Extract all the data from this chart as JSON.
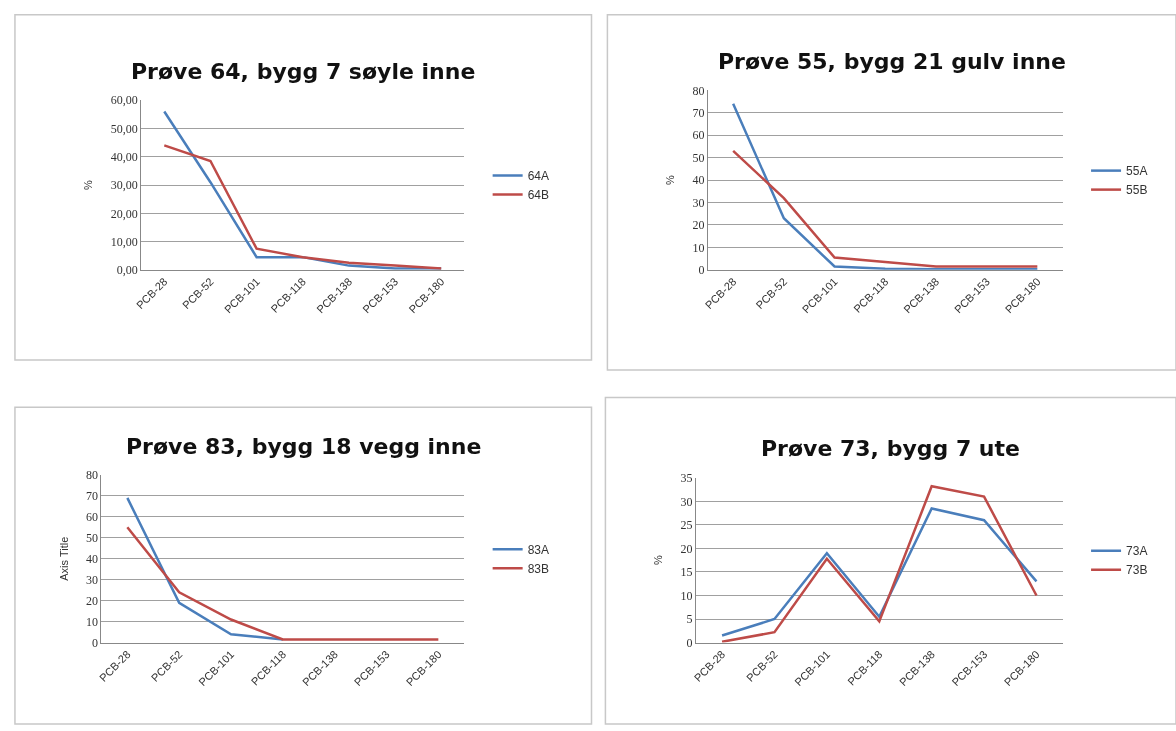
{
  "chart_data": [
    {
      "type": "line",
      "title": "Prøve 64, bygg 7 søyle inne",
      "ylabel": "%",
      "categories": [
        "PCB-28",
        "PCB-52",
        "PCB-101",
        "PCB-118",
        "PCB-138",
        "PCB-153",
        "PCB-180"
      ],
      "series": [
        {
          "name": "64A",
          "color": "#4a7ebb",
          "values": [
            56,
            31,
            4.5,
            4.5,
            1.5,
            0.5,
            0.5
          ]
        },
        {
          "name": "64B",
          "color": "#be4b48",
          "values": [
            44,
            38.5,
            7.5,
            4.5,
            2.5,
            1.5,
            0.5
          ]
        }
      ],
      "ylim": [
        0,
        60
      ],
      "yticks": [
        {
          "value": 0,
          "label": "0,00"
        },
        {
          "value": 10,
          "label": "10,00"
        },
        {
          "value": 20,
          "label": "20,00"
        },
        {
          "value": 30,
          "label": "30,00"
        },
        {
          "value": 40,
          "label": "40,00"
        },
        {
          "value": 50,
          "label": "50,00"
        },
        {
          "value": 60,
          "label": "60,00"
        }
      ],
      "grid": "y",
      "legend": "right",
      "marker": "none",
      "line_style": "solid"
    },
    {
      "type": "line",
      "title": "Prøve 55, bygg 21 gulv inne",
      "ylabel": "%",
      "categories": [
        "PCB-28",
        "PCB-52",
        "PCB-101",
        "PCB-118",
        "PCB-138",
        "PCB-153",
        "PCB-180"
      ],
      "series": [
        {
          "name": "55A",
          "color": "#4a7ebb",
          "values": [
            74,
            23,
            1.5,
            0.5,
            0.3,
            0.3,
            0.3
          ]
        },
        {
          "name": "55B",
          "color": "#be4b48",
          "values": [
            53,
            32,
            5.5,
            3.5,
            1.5,
            1.5,
            1.5
          ]
        }
      ],
      "ylim": [
        0,
        80
      ],
      "yticks": [
        0,
        10,
        20,
        30,
        40,
        50,
        60,
        70,
        80
      ],
      "grid": "y",
      "legend": "right",
      "marker": "none",
      "line_style": "solid"
    },
    {
      "type": "line",
      "title": "Prøve 83, bygg 18 vegg inne",
      "ylabel": "Axis Title",
      "categories": [
        "PCB-28",
        "PCB-52",
        "PCB-101",
        "PCB-118",
        "PCB-138",
        "PCB-153",
        "PCB-180"
      ],
      "series": [
        {
          "name": "83A",
          "color": "#4a7ebb",
          "values": [
            69,
            19,
            4,
            1.5,
            null,
            null,
            null
          ]
        },
        {
          "name": "83B",
          "color": "#be4b48",
          "values": [
            55,
            24,
            11,
            1.5,
            1.5,
            1.5,
            1.5
          ]
        }
      ],
      "ylim": [
        0,
        80
      ],
      "yticks": [
        0,
        10,
        20,
        30,
        40,
        50,
        60,
        70,
        80
      ],
      "grid": "y",
      "legend": "right",
      "marker": "none",
      "line_style": "solid"
    },
    {
      "type": "line",
      "title": "Prøve 73, bygg 7 ute",
      "ylabel": "%",
      "categories": [
        "PCB-28",
        "PCB-52",
        "PCB-101",
        "PCB-118",
        "PCB-138",
        "PCB-153",
        "PCB-180"
      ],
      "series": [
        {
          "name": "73A",
          "color": "#4a7ebb",
          "values": [
            1.5,
            5,
            19,
            5.5,
            28.5,
            26,
            13
          ]
        },
        {
          "name": "73B",
          "color": "#be4b48",
          "values": [
            0.2,
            2.2,
            17.8,
            4.5,
            33.2,
            31,
            10
          ]
        }
      ],
      "ylim": [
        0,
        35
      ],
      "yticks": [
        0,
        5,
        10,
        15,
        20,
        25,
        30,
        35
      ],
      "grid": "y",
      "legend": "right",
      "marker": "none",
      "line_style": "solid"
    }
  ]
}
